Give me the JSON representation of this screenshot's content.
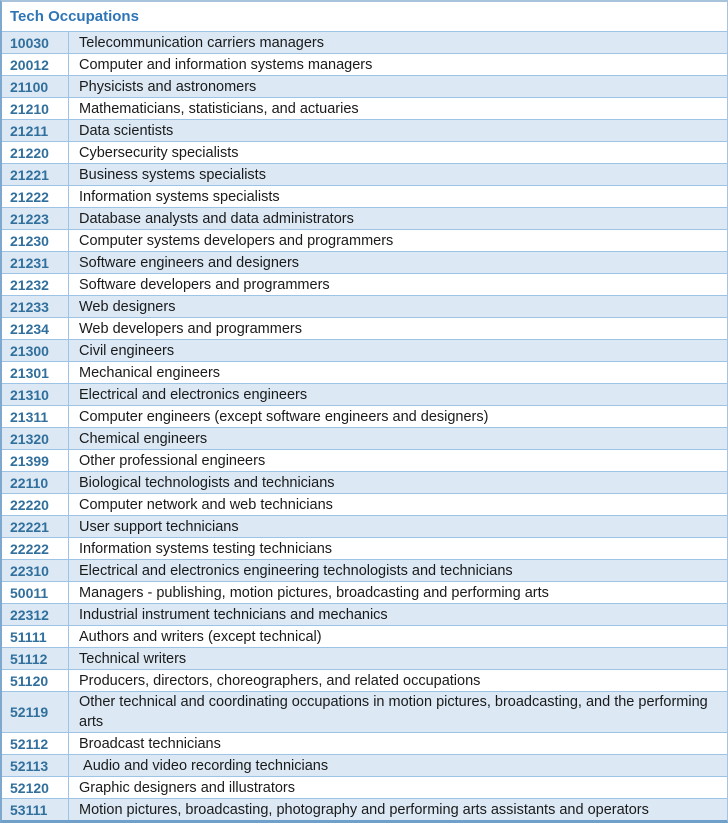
{
  "table": {
    "title": "Tech Occupations",
    "columns": [
      "code",
      "occupation"
    ],
    "rows": [
      {
        "code": "10030",
        "occupation": "Telecommunication carriers managers"
      },
      {
        "code": "20012",
        "occupation": "Computer and information systems managers"
      },
      {
        "code": "21100",
        "occupation": "Physicists and astronomers"
      },
      {
        "code": "21210",
        "occupation": "Mathematicians, statisticians, and actuaries"
      },
      {
        "code": "21211",
        "occupation": "Data scientists"
      },
      {
        "code": "21220",
        "occupation": "Cybersecurity specialists"
      },
      {
        "code": "21221",
        "occupation": "Business systems specialists"
      },
      {
        "code": "21222",
        "occupation": "Information systems specialists"
      },
      {
        "code": "21223",
        "occupation": "Database analysts and data administrators"
      },
      {
        "code": "21230",
        "occupation": "Computer systems developers and programmers"
      },
      {
        "code": "21231",
        "occupation": "Software engineers and designers"
      },
      {
        "code": "21232",
        "occupation": "Software developers and programmers"
      },
      {
        "code": "21233",
        "occupation": "Web designers"
      },
      {
        "code": "21234",
        "occupation": "Web developers and programmers"
      },
      {
        "code": "21300",
        "occupation": "Civil engineers"
      },
      {
        "code": "21301",
        "occupation": "Mechanical engineers"
      },
      {
        "code": "21310",
        "occupation": "Electrical and electronics engineers"
      },
      {
        "code": "21311",
        "occupation": "Computer engineers (except software engineers and designers)"
      },
      {
        "code": "21320",
        "occupation": "Chemical engineers"
      },
      {
        "code": "21399",
        "occupation": "Other professional engineers"
      },
      {
        "code": "22110",
        "occupation": "Biological technologists and technicians"
      },
      {
        "code": "22220",
        "occupation": "Computer network and web technicians"
      },
      {
        "code": "22221",
        "occupation": "User support technicians"
      },
      {
        "code": "22222",
        "occupation": "Information systems testing technicians"
      },
      {
        "code": "22310",
        "occupation": "Electrical and electronics engineering technologists and technicians"
      },
      {
        "code": "50011",
        "occupation": "Managers - publishing, motion pictures, broadcasting and performing arts"
      },
      {
        "code": "22312",
        "occupation": "Industrial instrument technicians and mechanics"
      },
      {
        "code": "51111",
        "occupation": "Authors and writers (except technical)"
      },
      {
        "code": "51112",
        "occupation": "Technical writers"
      },
      {
        "code": "51120",
        "occupation": "Producers, directors, choreographers, and related occupations"
      },
      {
        "code": "52119",
        "occupation": "Other technical and coordinating occupations in motion pictures, broadcasting, and the performing arts"
      },
      {
        "code": "52112",
        "occupation": "Broadcast technicians"
      },
      {
        "code": "52113",
        "occupation": " Audio and video recording technicians"
      },
      {
        "code": "52120",
        "occupation": "Graphic designers and illustrators"
      },
      {
        "code": "53111",
        "occupation": "Motion pictures, broadcasting, photography and performing arts assistants and operators"
      }
    ]
  },
  "colors": {
    "header_text": "#2e75b6",
    "code_text": "#316f9c",
    "body_text": "#1a1a1a",
    "alt_row_bg": "#dce9f5",
    "row_separator": "#9dc3e6",
    "outer_border_left": "#7fa8ce",
    "outer_border_bottom": "#6fa0c9"
  }
}
